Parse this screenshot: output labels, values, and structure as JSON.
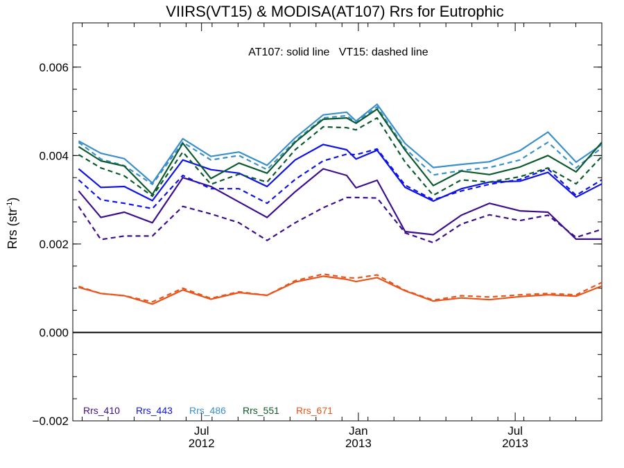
{
  "chart_data": {
    "type": "line",
    "title": "VIIRS(VT15) & MODISA(AT107)  Rrs for Eutrophic",
    "annotation": "AT107: solid line   VT15: dashed line",
    "ylabel": "Rrs (str",
    "ylabel_sup": "-1",
    "ylabel_close": ")",
    "xlabel": "",
    "ylim": [
      -0.002,
      0.007
    ],
    "xlim": [
      0,
      22.6
    ],
    "y_ticks": [
      "0.006",
      "0.004",
      "0.002",
      "0.000",
      "−0.002"
    ],
    "y_tick_values": [
      0.006,
      0.004,
      0.002,
      0.0,
      -0.002
    ],
    "x_tick_labels": [
      {
        "label": "Jul",
        "year": "2012",
        "value": 5.5
      },
      {
        "label": "Jan",
        "year": "2013",
        "value": 12.2
      },
      {
        "label": "Jul",
        "year": "2013",
        "value": 18.9
      }
    ],
    "zero_line": true,
    "grid": false,
    "legend_position": "bottom-left",
    "x": [
      0.25,
      1.2,
      2.2,
      3.4,
      4.7,
      5.9,
      7.1,
      8.3,
      9.5,
      10.7,
      11.7,
      12.1,
      13.0,
      14.2,
      15.4,
      16.6,
      17.8,
      19.1,
      20.3,
      21.5,
      22.6
    ],
    "series": [
      {
        "name": "Rrs_410",
        "color": "#3c0e8c",
        "solid": [
          0.0032,
          0.0026,
          0.00272,
          0.00248,
          0.0035,
          0.0033,
          0.00295,
          0.0026,
          0.00318,
          0.0037,
          0.00355,
          0.00327,
          0.00344,
          0.00228,
          0.00221,
          0.00265,
          0.00292,
          0.00275,
          0.00272,
          0.00211,
          0.00211
        ],
        "dashed": [
          0.00285,
          0.0021,
          0.00218,
          0.00218,
          0.00285,
          0.00268,
          0.00248,
          0.00208,
          0.00248,
          0.00282,
          0.00305,
          0.00305,
          0.00304,
          0.00225,
          0.00203,
          0.00245,
          0.00266,
          0.00253,
          0.00265,
          0.00215,
          0.00233
        ]
      },
      {
        "name": "Rrs_443",
        "color": "#0d12e8",
        "solid": [
          0.0037,
          0.00328,
          0.0033,
          0.00298,
          0.0039,
          0.00368,
          0.0036,
          0.0033,
          0.0039,
          0.00425,
          0.00413,
          0.00392,
          0.00412,
          0.00328,
          0.00297,
          0.00325,
          0.0034,
          0.00342,
          0.00362,
          0.00306,
          0.00336
        ],
        "dashed": [
          0.00345,
          0.003,
          0.00292,
          0.0028,
          0.00355,
          0.00325,
          0.00325,
          0.00292,
          0.00346,
          0.00388,
          0.00403,
          0.00402,
          0.00415,
          0.00333,
          0.003,
          0.0032,
          0.00335,
          0.00346,
          0.0037,
          0.0031,
          0.00345
        ]
      },
      {
        "name": "Rrs_486",
        "color": "#3a8fc9",
        "solid": [
          0.00433,
          0.00405,
          0.00393,
          0.00338,
          0.00438,
          0.00398,
          0.00408,
          0.00378,
          0.0044,
          0.00492,
          0.00498,
          0.00478,
          0.00516,
          0.00427,
          0.00373,
          0.0038,
          0.00386,
          0.00411,
          0.00453,
          0.00385,
          0.00425
        ],
        "dashed": [
          0.0043,
          0.00392,
          0.00377,
          0.00335,
          0.0043,
          0.0039,
          0.004,
          0.00368,
          0.00433,
          0.00485,
          0.0049,
          0.00475,
          0.0051,
          0.00416,
          0.00356,
          0.00366,
          0.00373,
          0.0039,
          0.0043,
          0.00372,
          0.00418
        ]
      },
      {
        "name": "Rrs_551",
        "color": "#0b5a2c",
        "solid": [
          0.0042,
          0.00388,
          0.00376,
          0.00312,
          0.00428,
          0.00348,
          0.00383,
          0.0036,
          0.0043,
          0.00482,
          0.00485,
          0.00473,
          0.00505,
          0.00412,
          0.00332,
          0.00365,
          0.00357,
          0.00374,
          0.004,
          0.00363,
          0.0043
        ],
        "dashed": [
          0.00402,
          0.00372,
          0.00354,
          0.00308,
          0.00408,
          0.00335,
          0.00358,
          0.0034,
          0.00413,
          0.00465,
          0.00463,
          0.00458,
          0.00485,
          0.00385,
          0.0031,
          0.00345,
          0.0034,
          0.00352,
          0.00372,
          0.00336,
          0.00398
        ]
      },
      {
        "name": "Rrs_671",
        "color": "#e8541a",
        "solid": [
          0.00102,
          0.00088,
          0.00083,
          0.00064,
          0.00096,
          0.00075,
          0.0009,
          0.00084,
          0.00114,
          0.00127,
          0.0012,
          0.00115,
          0.00124,
          0.00094,
          0.00071,
          0.00078,
          0.00074,
          0.00081,
          0.00085,
          0.00082,
          0.00105
        ],
        "dashed": [
          0.00104,
          0.00088,
          0.00083,
          0.00069,
          0.001,
          0.00077,
          0.00092,
          0.00084,
          0.00117,
          0.00132,
          0.00124,
          0.00123,
          0.0013,
          0.00095,
          0.00073,
          0.00083,
          0.0008,
          0.00085,
          0.00088,
          0.00085,
          0.00113
        ]
      }
    ]
  }
}
